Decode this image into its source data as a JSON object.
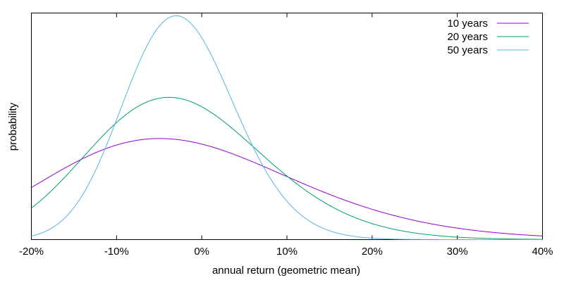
{
  "chart_data": {
    "type": "line",
    "title": "",
    "xlabel": "annual return (geometric mean)",
    "ylabel": "probability",
    "xlim": [
      -0.2,
      0.4
    ],
    "ylim": [
      0,
      6.2
    ],
    "xticks": [
      {
        "value": -0.2,
        "label": "-20%"
      },
      {
        "value": -0.1,
        "label": "-10%"
      },
      {
        "value": 0.0,
        "label": "0%"
      },
      {
        "value": 0.1,
        "label": "10%"
      },
      {
        "value": 0.2,
        "label": "20%"
      },
      {
        "value": 0.3,
        "label": "30%"
      },
      {
        "value": 0.4,
        "label": "40%"
      }
    ],
    "grid": false,
    "legend_position": "top-right",
    "distribution": "lognormal density of annual return (1+r), log-mean mu, log-sd sigma",
    "series": [
      {
        "name": "10 years",
        "color": "#9400d3",
        "mu": -0.028,
        "sigma": 0.15,
        "mode": -0.05
      },
      {
        "name": "20 years",
        "color": "#009e73",
        "mu": -0.028,
        "sigma": 0.106,
        "mode": -0.039
      },
      {
        "name": "50 years",
        "color": "#56b4e9",
        "mu": -0.026,
        "sigma": 0.067,
        "mode": -0.03
      }
    ]
  }
}
